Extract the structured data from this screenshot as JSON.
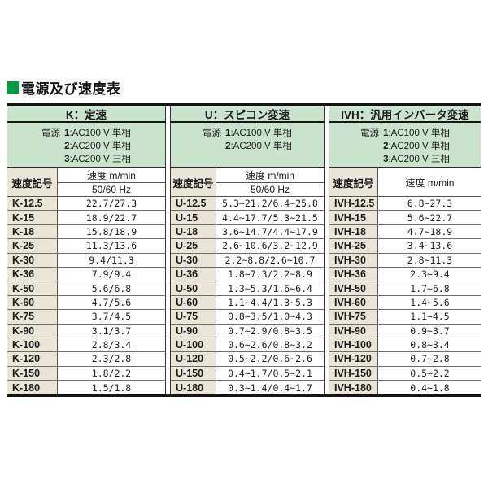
{
  "title": {
    "text": "電源及び速度表"
  },
  "colors": {
    "title_square_green": "#009944",
    "header_green": "#c9e3cc",
    "code_cell_beige": "#eae6d7"
  },
  "column_headers": {
    "code": "速度記号",
    "speed_line1": "速度 m/min",
    "speed_line2": "50/60 Hz"
  },
  "tables": [
    {
      "header": "K：定速",
      "power_label": "電源",
      "power_options": [
        {
          "num": "1",
          "desc": "AC100 V 単相"
        },
        {
          "num": "2",
          "desc": "AC200 V 単相"
        },
        {
          "num": "3",
          "desc": "AC200 V 三相"
        }
      ],
      "code_header": "速度記号",
      "speed_header_lines": [
        "速度 m/min",
        "50/60 Hz"
      ],
      "rows": [
        {
          "code": "K-12.5",
          "speed": "22.7/27.3"
        },
        {
          "code": "K-15",
          "speed": "18.9/22.7"
        },
        {
          "code": "K-18",
          "speed": "15.8/18.9"
        },
        {
          "code": "K-25",
          "speed": "11.3/13.6"
        },
        {
          "code": "K-30",
          "speed": "9.4/11.3"
        },
        {
          "code": "K-36",
          "speed": "7.9/9.4"
        },
        {
          "code": "K-50",
          "speed": "5.6/6.8"
        },
        {
          "code": "K-60",
          "speed": "4.7/5.6"
        },
        {
          "code": "K-75",
          "speed": "3.7/4.5"
        },
        {
          "code": "K-90",
          "speed": "3.1/3.7"
        },
        {
          "code": "K-100",
          "speed": "2.8/3.4"
        },
        {
          "code": "K-120",
          "speed": "2.3/2.8"
        },
        {
          "code": "K-150",
          "speed": "1.8/2.2"
        },
        {
          "code": "K-180",
          "speed": "1.5/1.8"
        }
      ]
    },
    {
      "header": "U：スピコン変速",
      "power_label": "電源",
      "power_options": [
        {
          "num": "1",
          "desc": "AC100 V 単相"
        },
        {
          "num": "2",
          "desc": "AC200 V 単相"
        }
      ],
      "code_header": "速度記号",
      "speed_header_lines": [
        "速度 m/min",
        "50/60 Hz"
      ],
      "rows": [
        {
          "code": "U-12.5",
          "speed": "5.3~21.2/6.4~25.8"
        },
        {
          "code": "U-15",
          "speed": "4.4~17.7/5.3~21.5"
        },
        {
          "code": "U-18",
          "speed": "3.6~14.7/4.4~17.9"
        },
        {
          "code": "U-25",
          "speed": "2.6~10.6/3.2~12.9"
        },
        {
          "code": "U-30",
          "speed": "2.2~8.8/2.6~10.7"
        },
        {
          "code": "U-36",
          "speed": "1.8~7.3/2.2~8.9"
        },
        {
          "code": "U-50",
          "speed": "1.3~5.3/1.6~6.4"
        },
        {
          "code": "U-60",
          "speed": "1.1~4.4/1.3~5.3"
        },
        {
          "code": "U-75",
          "speed": "0.8~3.5/1.0~4.3"
        },
        {
          "code": "U-90",
          "speed": "0.7~2.9/0.8~3.5"
        },
        {
          "code": "U-100",
          "speed": "0.6~2.6/0.8~3.2"
        },
        {
          "code": "U-120",
          "speed": "0.5~2.2/0.6~2.6"
        },
        {
          "code": "U-150",
          "speed": "0.4~1.7/0.5~2.1"
        },
        {
          "code": "U-180",
          "speed": "0.3~1.4/0.4~1.7"
        }
      ]
    },
    {
      "header": "IVH：汎用インバータ変速",
      "power_label": "電源",
      "power_options": [
        {
          "num": "1",
          "desc": "AC100 V 単相"
        },
        {
          "num": "2",
          "desc": "AC200 V 単相"
        },
        {
          "num": "3",
          "desc": "AC200 V 三相"
        }
      ],
      "code_header": "速度記号",
      "speed_header_lines": [
        "速度 m/min"
      ],
      "rows": [
        {
          "code": "IVH-12.5",
          "speed": "6.8~27.3"
        },
        {
          "code": "IVH-15",
          "speed": "5.6~22.7"
        },
        {
          "code": "IVH-18",
          "speed": "4.7~18.9"
        },
        {
          "code": "IVH-25",
          "speed": "3.4~13.6"
        },
        {
          "code": "IVH-30",
          "speed": "2.8~11.3"
        },
        {
          "code": "IVH-36",
          "speed": "2.3~9.4"
        },
        {
          "code": "IVH-50",
          "speed": "1.7~6.8"
        },
        {
          "code": "IVH-60",
          "speed": "1.4~5.6"
        },
        {
          "code": "IVH-75",
          "speed": "1.1~4.5"
        },
        {
          "code": "IVH-90",
          "speed": "0.9~3.7"
        },
        {
          "code": "IVH-100",
          "speed": "0.8~3.4"
        },
        {
          "code": "IVH-120",
          "speed": "0.7~2.8"
        },
        {
          "code": "IVH-150",
          "speed": "0.5~2.2"
        },
        {
          "code": "IVH-180",
          "speed": "0.4~1.8"
        }
      ]
    }
  ]
}
